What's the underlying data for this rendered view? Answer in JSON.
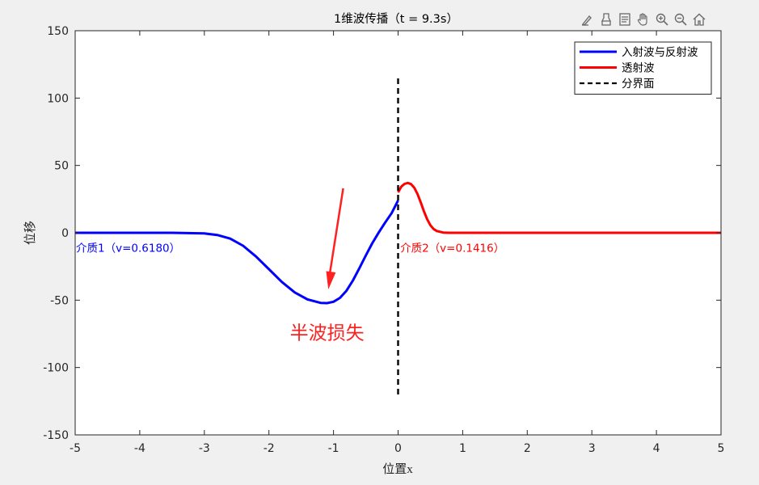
{
  "toolbar": {
    "icons": [
      "brush-icon",
      "erase-icon",
      "data-tips-icon",
      "pan-hand-icon",
      "zoom-in-icon",
      "zoom-out-icon",
      "home-icon"
    ]
  },
  "chart_data": {
    "type": "line",
    "title": "1维波传播（t = 9.3s）",
    "xlabel": "位置x",
    "ylabel": "位移",
    "xlim": [
      -5,
      5
    ],
    "ylim": [
      -150,
      150
    ],
    "xticks": [
      "-5",
      "-4",
      "-3",
      "-2",
      "-1",
      "0",
      "1",
      "2",
      "3",
      "4",
      "5"
    ],
    "yticks": [
      "150",
      "100",
      "50",
      "0",
      "-50",
      "-100",
      "-150"
    ],
    "grid": false,
    "legend_position": "top-right",
    "series": [
      {
        "name": "入射波与反射波",
        "color": "#0000ff",
        "x": [
          -5.0,
          -4.0,
          -3.5,
          -3.0,
          -2.8,
          -2.6,
          -2.4,
          -2.2,
          -2.0,
          -1.8,
          -1.6,
          -1.4,
          -1.2,
          -1.1,
          -1.0,
          -0.9,
          -0.8,
          -0.7,
          -0.6,
          -0.5,
          -0.4,
          -0.3,
          -0.2,
          -0.1,
          0.0
        ],
        "y": [
          0.0,
          0.0,
          0.0,
          -0.5,
          -1.6,
          -4.3,
          -9.6,
          -17.6,
          -27.0,
          -36.5,
          -44.3,
          -49.5,
          -52.0,
          -52.2,
          -51.2,
          -48.3,
          -43.0,
          -35.4,
          -26.3,
          -16.8,
          -7.8,
          0.2,
          7.6,
          14.6,
          24.0
        ]
      },
      {
        "name": "透射波",
        "color": "#ff0000",
        "x": [
          0.0,
          0.05,
          0.1,
          0.15,
          0.2,
          0.25,
          0.3,
          0.35,
          0.4,
          0.45,
          0.5,
          0.55,
          0.6,
          0.7,
          0.8,
          1.0,
          2.0,
          3.0,
          4.0,
          5.0
        ],
        "y": [
          30.0,
          34.3,
          36.3,
          37.0,
          36.2,
          33.5,
          28.8,
          22.6,
          15.9,
          10.0,
          5.6,
          2.8,
          1.3,
          0.2,
          0.0,
          0.0,
          0.0,
          0.0,
          0.0,
          0.0
        ]
      },
      {
        "name": "分界面",
        "color": "#000000",
        "style": "dashed",
        "x": [
          0,
          0
        ],
        "y": [
          -120,
          115
        ]
      }
    ],
    "annotations": [
      {
        "text": "介质1（v=0.6180）",
        "x": -5,
        "y": -11,
        "color": "#0000ff"
      },
      {
        "text": "介质2（v=0.1416）",
        "x": 0.02,
        "y": -11,
        "color": "#ff0000"
      },
      {
        "text": "半波损失",
        "x": -1.1,
        "y": -74,
        "color": "#ff2020"
      }
    ],
    "arrow": {
      "from": [
        -0.85,
        33
      ],
      "to": [
        -1.08,
        -42
      ],
      "color": "#ff2020"
    }
  }
}
